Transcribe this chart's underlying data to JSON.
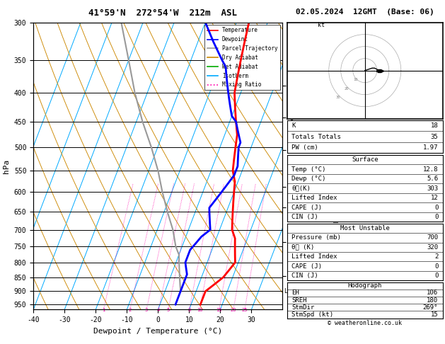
{
  "title_left": "41°59'N  272°54'W  212m  ASL",
  "title_right": "02.05.2024  12GMT  (Base: 06)",
  "xlabel": "Dewpoint / Temperature (°C)",
  "ylabel_left": "hPa",
  "isotherm_color": "#00aaff",
  "dry_adiabat_color": "#cc8800",
  "wet_adiabat_color": "#00aa00",
  "mixing_ratio_color": "#ff00aa",
  "temp_profile_color": "#ff0000",
  "dewp_profile_color": "#0000ff",
  "parcel_color": "#999999",
  "bg_color": "#ffffff",
  "legend_items": [
    {
      "label": "Temperature",
      "color": "#ff0000",
      "ls": "-"
    },
    {
      "label": "Dewpoint",
      "color": "#0000ff",
      "ls": "-"
    },
    {
      "label": "Parcel Trajectory",
      "color": "#999999",
      "ls": "-"
    },
    {
      "label": "Dry Adiabat",
      "color": "#cc8800",
      "ls": "-"
    },
    {
      "label": "Wet Adiabat",
      "color": "#00aa00",
      "ls": "-"
    },
    {
      "label": "Isotherm",
      "color": "#00aaff",
      "ls": "-"
    },
    {
      "label": "Mixing Ratio",
      "color": "#ff00aa",
      "ls": ":"
    }
  ],
  "km_pressures": [
    845,
    737,
    638,
    588,
    506,
    443,
    388
  ],
  "km_labels": [
    1,
    2,
    3,
    4,
    5,
    6,
    7
  ],
  "mr_vals": [
    1,
    2,
    3,
    4,
    5,
    8,
    10,
    15,
    20,
    25
  ],
  "lcl_pressure": 900,
  "temp_P": [
    300,
    325,
    350,
    375,
    400,
    425,
    450,
    475,
    500,
    525,
    550,
    575,
    600,
    625,
    650,
    675,
    700,
    725,
    750,
    775,
    800,
    825,
    850,
    875,
    900,
    925,
    950
  ],
  "temp_T": [
    -6,
    -5,
    -4,
    -3,
    -2,
    0,
    2,
    4,
    5,
    6,
    7,
    9,
    10,
    11,
    12,
    13,
    14,
    16,
    17,
    18,
    19,
    18,
    17,
    15,
    13,
    13,
    13
  ],
  "dewp_P": [
    300,
    325,
    350,
    360,
    370,
    380,
    390,
    400,
    410,
    420,
    430,
    440,
    450,
    460,
    470,
    480,
    490,
    500,
    520,
    540,
    560,
    580,
    600,
    620,
    640,
    660,
    680,
    700,
    720,
    740,
    760,
    780,
    800,
    820,
    840,
    860,
    880,
    900,
    920,
    940,
    950
  ],
  "dewp_T": [
    -20,
    -15,
    -10,
    -8,
    -7,
    -6,
    -5,
    -4,
    -3,
    -2,
    -1,
    0,
    2,
    3,
    4,
    5,
    6,
    6,
    7,
    8,
    8,
    7,
    6,
    5,
    4,
    5,
    6,
    7,
    5,
    4,
    3,
    3,
    3,
    4,
    5,
    5,
    5,
    5,
    5,
    5,
    5
  ],
  "parcel_P": [
    900,
    875,
    850,
    825,
    800,
    775,
    750,
    700,
    650,
    600,
    550,
    500,
    450,
    400,
    350,
    300
  ],
  "parcel_T": [
    5,
    4,
    3,
    2,
    1,
    0,
    -2,
    -5,
    -9,
    -13,
    -17,
    -22,
    -28,
    -34,
    -40,
    -47
  ],
  "sounding_data": {
    "K": 18,
    "Totals_Totals": 35,
    "PW_cm": 1.97,
    "Surface_Temp": 12.8,
    "Surface_Dewp": 5.6,
    "Surface_thetae": 303,
    "Surface_LI": 12,
    "Surface_CAPE": 0,
    "Surface_CIN": 0,
    "MU_Pressure": 700,
    "MU_thetae": 320,
    "MU_LI": 2,
    "MU_CAPE": 0,
    "MU_CIN": 0,
    "EH": 106,
    "SREH": 180,
    "StmDir": 269,
    "StmSpd": 15
  },
  "copyright": "© weatheronline.co.uk"
}
